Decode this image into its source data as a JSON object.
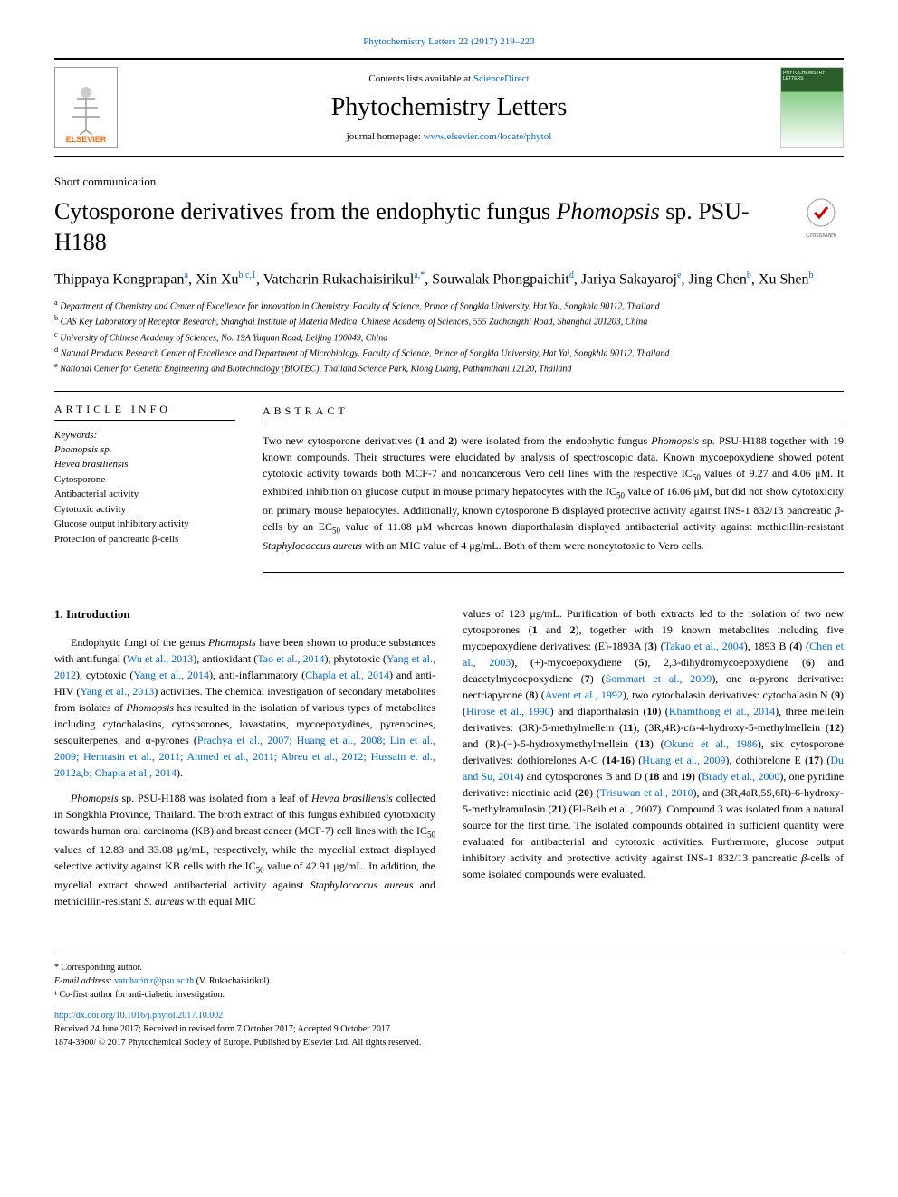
{
  "header": {
    "top_link": "Phytochemistry Letters 22 (2017) 219–223",
    "contents_prefix": "Contents lists available at ",
    "contents_link": "ScienceDirect",
    "journal_name": "Phytochemistry Letters",
    "homepage_prefix": "journal homepage: ",
    "homepage_link": "www.elsevier.com/locate/phytol",
    "elsevier": "ELSEVIER"
  },
  "article": {
    "type": "Short communication",
    "title_plain": "Cytosporone derivatives from the endophytic fungus ",
    "title_italic": "Phomopsis",
    "title_suffix": " sp. PSU-H188",
    "authors_html": "Thippaya Kongprapan<sup>a</sup>, Xin Xu<sup>b,c,1</sup>, Vatcharin Rukachaisirikul<sup>a,*</sup>, Souwalak Phongpaichit<sup>d</sup>, Jariya Sakayaroj<sup>e</sup>, Jing Chen<sup>b</sup>, Xu Shen<sup>b</sup>",
    "affiliations": {
      "a": "Department of Chemistry and Center of Excellence for Innovation in Chemistry, Faculty of Science, Prince of Songkla University, Hat Yai, Songkhla 90112, Thailand",
      "b": "CAS Key Laboratory of Receptor Research, Shanghai Institute of Materia Medica, Chinese Academy of Sciences, 555 Zuchongzhi Road, Shanghai 201203, China",
      "c": "University of Chinese Academy of Sciences, No. 19A Yuquan Road, Beijing 100049, China",
      "d": "Natural Products Research Center of Excellence and Department of Microbiology, Faculty of Science, Prince of Songkla University, Hat Yai, Songkhla 90112, Thailand",
      "e": "National Center for Genetic Engineering and Biotechnology (BIOTEC), Thailand Science Park, Klong Luang, Pathumthani 12120, Thailand"
    }
  },
  "info": {
    "header": "ARTICLE INFO",
    "keywords_label": "Keywords:",
    "keywords": [
      "Phomopsis sp.",
      "Hevea brasiliensis",
      "Cytosporone",
      "Antibacterial activity",
      "Cytotoxic activity",
      "Glucose output inhibitory activity",
      "Protection of pancreatic β-cells"
    ]
  },
  "abstract": {
    "header": "ABSTRACT",
    "text": "Two new cytosporone derivatives (1 and 2) were isolated from the endophytic fungus Phomopsis sp. PSU-H188 together with 19 known compounds. Their structures were elucidated by analysis of spectroscopic data. Known mycoepoxydiene showed potent cytotoxic activity towards both MCF-7 and noncancerous Vero cell lines with the respective IC₅₀ values of 9.27 and 4.06 μM. It exhibited inhibition on glucose output in mouse primary hepatocytes with the IC₅₀ value of 16.06 μM, but did not show cytotoxicity on primary mouse hepatocytes. Additionally, known cytosporone B displayed protective activity against INS-1 832/13 pancreatic β-cells by an EC₅₀ value of 11.08 μM whereas known diaporthalasin displayed antibacterial activity against methicillin-resistant Staphylococcus aureus with an MIC value of 4 μg/mL. Both of them were noncytotoxic to Vero cells."
  },
  "body": {
    "section1_header": "1. Introduction",
    "para1": "Endophytic fungi of the genus Phomopsis have been shown to produce substances with antifungal (Wu et al., 2013), antioxidant (Tao et al., 2014), phytotoxic (Yang et al., 2012), cytotoxic (Yang et al., 2014), anti-inflammatory (Chapla et al., 2014) and anti-HIV (Yang et al., 2013) activities. The chemical investigation of secondary metabolites from isolates of Phomopsis has resulted in the isolation of various types of metabolites including cytochalasins, cytosporones, lovastatins, mycoepoxydines, pyrenocines, sesquiterpenes, and α-pyrones (Prachya et al., 2007; Huang et al., 2008; Lin et al., 2009; Hemtasin et al., 2011; Ahmed et al., 2011; Abreu et al., 2012; Hussain et al., 2012a,b; Chapla et al., 2014).",
    "para2": "Phomopsis sp. PSU-H188 was isolated from a leaf of Hevea brasiliensis collected in Songkhla Province, Thailand. The broth extract of this fungus exhibited cytotoxicity towards human oral carcinoma (KB) and breast cancer (MCF-7) cell lines with the IC₅₀ values of 12.83 and 33.08 μg/mL, respectively, while the mycelial extract displayed selective activity against KB cells with the IC₅₀ value of 42.91 μg/mL. In addition, the mycelial extract showed antibacterial activity against Staphylococcus aureus and methicillin-resistant S. aureus with equal MIC",
    "para3": "values of 128 μg/mL. Purification of both extracts led to the isolation of two new cytosporones (1 and 2), together with 19 known metabolites including five mycoepoxydiene derivatives: (E)-1893A (3) (Takao et al., 2004), 1893 B (4) (Chen et al., 2003), (+)-mycoepoxydiene (5), 2,3-dihydromycoepoxydiene (6) and deacetylmycoepoxydiene (7) (Sommart et al., 2009), one α-pyrone derivative: nectriapyrone (8) (Avent et al., 1992), two cytochalasin derivatives: cytochalasin N (9) (Hirose et al., 1990) and diaporthalasin (10) (Khamthong et al., 2014), three mellein derivatives: (3R)-5-methylmellein (11), (3R,4R)-cis-4-hydroxy-5-methylmellein (12) and (R)-(−)-5-hydroxymethylmellein (13) (Okuno et al., 1986), six cytosporone derivatives: dothiorelones A-C (14-16) (Huang et al., 2009), dothiorelone E (17) (Du and Su, 2014) and cytosporones B and D (18 and 19) (Brady et al., 2000), one pyridine derivative: nicotinic acid (20) (Trisuwan et al., 2010), and (3R,4aR,5S,6R)-6-hydroxy-5-methylramulosin (21) (El-Beih et al., 2007). Compound 3 was isolated from a natural source for the first time. The isolated compounds obtained in sufficient quantity were evaluated for antibacterial and cytotoxic activities. Furthermore, glucose output inhibitory activity and protective activity against INS-1 832/13 pancreatic β-cells of some isolated compounds were evaluated."
  },
  "footer": {
    "corr": "* Corresponding author.",
    "email_label": "E-mail address: ",
    "email": "vatcharin.r@psu.ac.th",
    "email_suffix": " (V. Rukachaisirikul).",
    "cofirst": "¹ Co-first author for anti-diabetic investigation.",
    "doi": "http://dx.doi.org/10.1016/j.phytol.2017.10.002",
    "received": "Received 24 June 2017; Received in revised form 7 October 2017; Accepted 9 October 2017",
    "copyright": "1874-3900/ © 2017 Phytochemical Society of Europe. Published by Elsevier Ltd. All rights reserved."
  },
  "colors": {
    "link_color": "#0066cc",
    "elsevier_orange": "#ff6600",
    "text_color": "#000000",
    "background": "#ffffff"
  }
}
